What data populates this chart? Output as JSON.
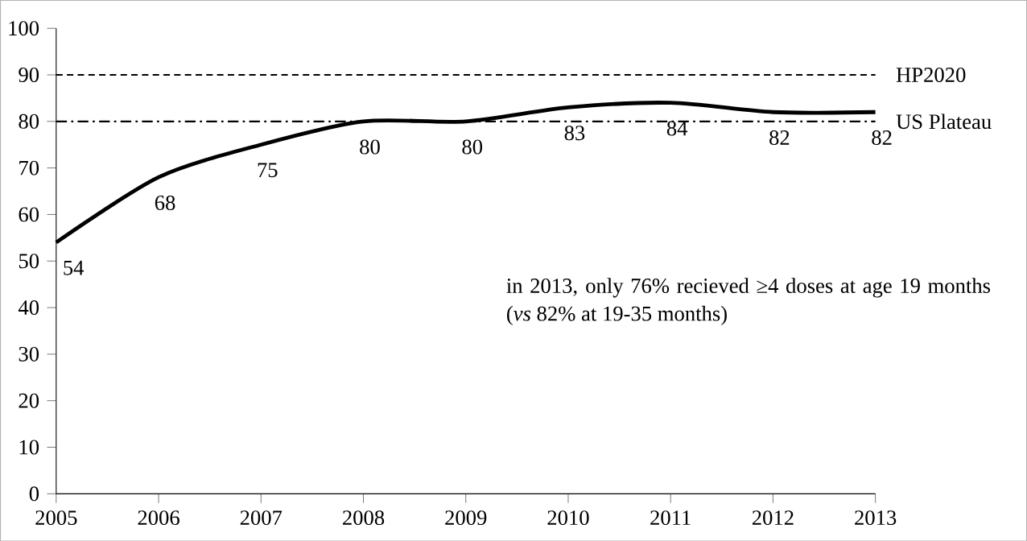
{
  "chart_data": {
    "type": "line",
    "x": [
      2005,
      2006,
      2007,
      2008,
      2009,
      2010,
      2011,
      2012,
      2013
    ],
    "series": [
      {
        "color": "#000000",
        "values": [
          54,
          68,
          75,
          80,
          80,
          83,
          84,
          82,
          82
        ]
      }
    ],
    "xlim": [
      2005,
      2013
    ],
    "xticks": [
      2005,
      2006,
      2007,
      2008,
      2009,
      2010,
      2011,
      2012,
      2013
    ],
    "ylim": [
      0,
      100
    ],
    "yticks": [
      0,
      10,
      20,
      30,
      40,
      50,
      60,
      70,
      80,
      90,
      100
    ],
    "grid": false,
    "data_labels": true,
    "line_style": "solid",
    "marker": "none",
    "ref_lines": [
      {
        "axis": "y",
        "value": 90,
        "label": "HP2020",
        "color": "#000000",
        "line_style": "dashed"
      },
      {
        "axis": "y",
        "value": 80,
        "label": "US Plateau",
        "color": "#000000",
        "line_style": "dashdot"
      }
    ],
    "annotations": [
      "in 2013, only 76% recieved ≥4 doses at age 19 months (*vs* 82% at 19-35 months)"
    ]
  }
}
